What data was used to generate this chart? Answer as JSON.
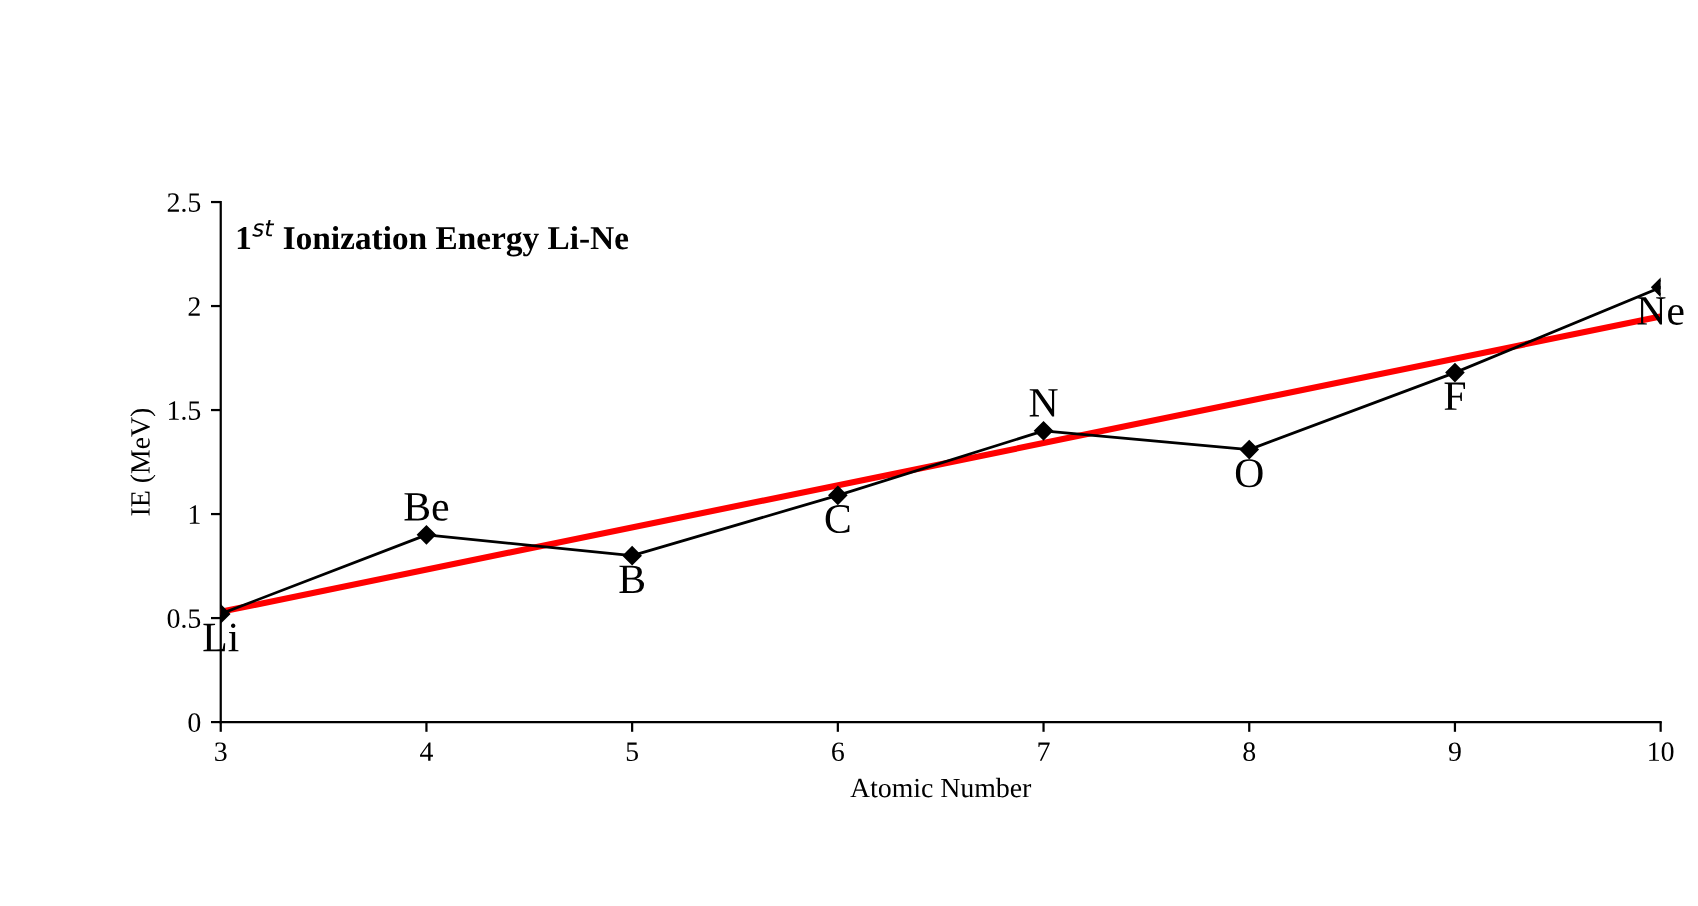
{
  "chart_data": {
    "type": "line",
    "title": "1$^{st}$ Ionization Energy Li-Ne",
    "xlabel": "Atomic Number",
    "ylabel": "IE (MeV)",
    "series": [
      {
        "color": "#000000",
        "marker": "diamond",
        "x": [
          3,
          4,
          5,
          6,
          7,
          8,
          9,
          10
        ],
        "values": [
          0.52,
          0.9,
          0.8,
          1.09,
          1.4,
          1.31,
          1.68,
          2.09
        ]
      },
      {
        "color": "#ff0000",
        "marker": "none",
        "x": [
          3,
          10
        ],
        "values": [
          0.53,
          1.95
        ]
      }
    ],
    "annotations": [
      {
        "text": "Li",
        "x": 3,
        "y": 0.52
      },
      {
        "text": "Be",
        "x": 4,
        "y": 0.9
      },
      {
        "text": "B",
        "x": 5,
        "y": 0.8
      },
      {
        "text": "C",
        "x": 6,
        "y": 1.09
      },
      {
        "text": "N",
        "x": 7,
        "y": 1.4
      },
      {
        "text": "O",
        "x": 8,
        "y": 1.31
      },
      {
        "text": "F",
        "x": 9,
        "y": 1.68
      },
      {
        "text": "Ne",
        "x": 10,
        "y": 2.09
      }
    ],
    "xlim": [
      3,
      10
    ],
    "xticks": [
      3,
      4,
      5,
      6,
      7,
      8,
      9,
      10
    ],
    "ylim": [
      0,
      2.5
    ],
    "yticks": [
      0,
      0.5,
      1,
      1.5,
      2,
      2.5
    ],
    "grid": false,
    "legend": false
  }
}
